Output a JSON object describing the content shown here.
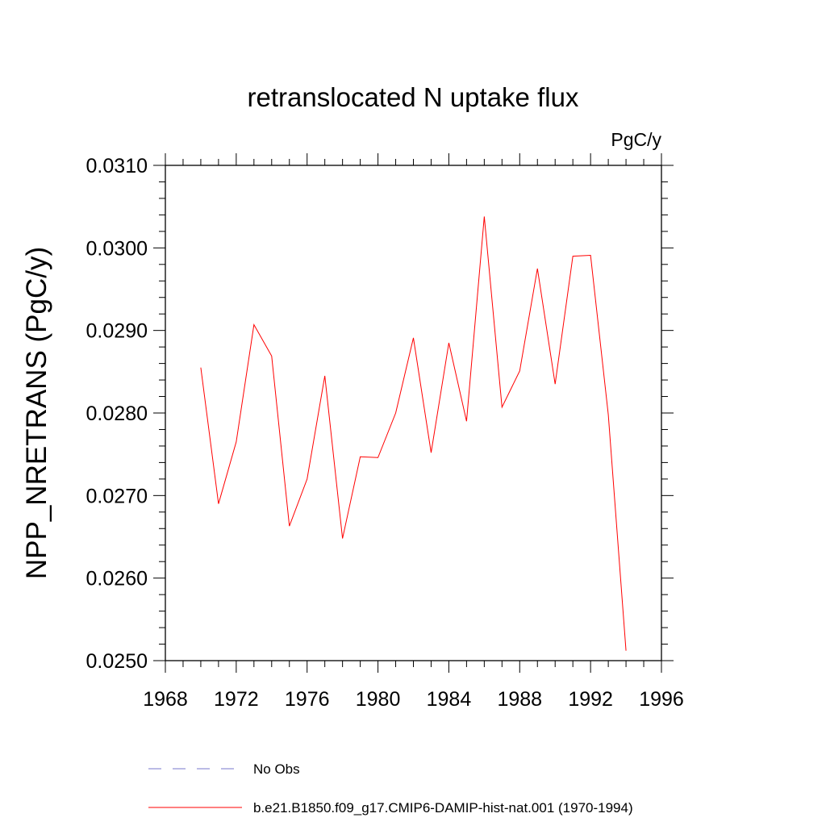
{
  "chart_data": {
    "type": "line",
    "title": "retranslocated N uptake flux",
    "units_label": "PgC/y",
    "ylabel": "NPP_NRETRANS  (PgC/y)",
    "xlabel": "",
    "xlim": [
      1968,
      1996
    ],
    "ylim": [
      0.025,
      0.031
    ],
    "x_major_ticks": [
      1968,
      1972,
      1976,
      1980,
      1984,
      1988,
      1992,
      1996
    ],
    "x_tick_labels": [
      "1968",
      "1972",
      "1976",
      "1980",
      "1984",
      "1988",
      "1992",
      "1996"
    ],
    "y_major_ticks": [
      0.025,
      0.026,
      0.027,
      0.028,
      0.029,
      0.03,
      0.031
    ],
    "y_tick_labels": [
      "0.0250",
      "0.0260",
      "0.0270",
      "0.0280",
      "0.0290",
      "0.0300",
      "0.0310"
    ],
    "x_minor_step": 1,
    "y_minor_step": 0.0002,
    "grid": false,
    "legend_position": "bottom",
    "series": [
      {
        "name": "b.e21.B1850.f09_g17.CMIP6-DAMIP-hist-nat.001 (1970-1994)",
        "color": "#ff0000",
        "dash": "solid",
        "x": [
          1970,
          1971,
          1972,
          1973,
          1974,
          1975,
          1976,
          1977,
          1978,
          1979,
          1980,
          1981,
          1982,
          1983,
          1984,
          1985,
          1986,
          1987,
          1988,
          1989,
          1990,
          1991,
          1992,
          1993,
          1994
        ],
        "y": [
          0.02855,
          0.0269,
          0.02765,
          0.02907,
          0.02869,
          0.02663,
          0.0272,
          0.02845,
          0.02648,
          0.02747,
          0.02746,
          0.028,
          0.02891,
          0.02752,
          0.02885,
          0.0279,
          0.03038,
          0.02807,
          0.02851,
          0.02975,
          0.02835,
          0.0299,
          0.02991,
          0.02798,
          0.02512
        ]
      }
    ],
    "legend": [
      {
        "label": "No Obs",
        "color": "#7777cc",
        "dash": "dashed"
      },
      {
        "label": "b.e21.B1850.f09_g17.CMIP6-DAMIP-hist-nat.001 (1970-1994)",
        "color": "#ff0000",
        "dash": "solid"
      }
    ]
  }
}
